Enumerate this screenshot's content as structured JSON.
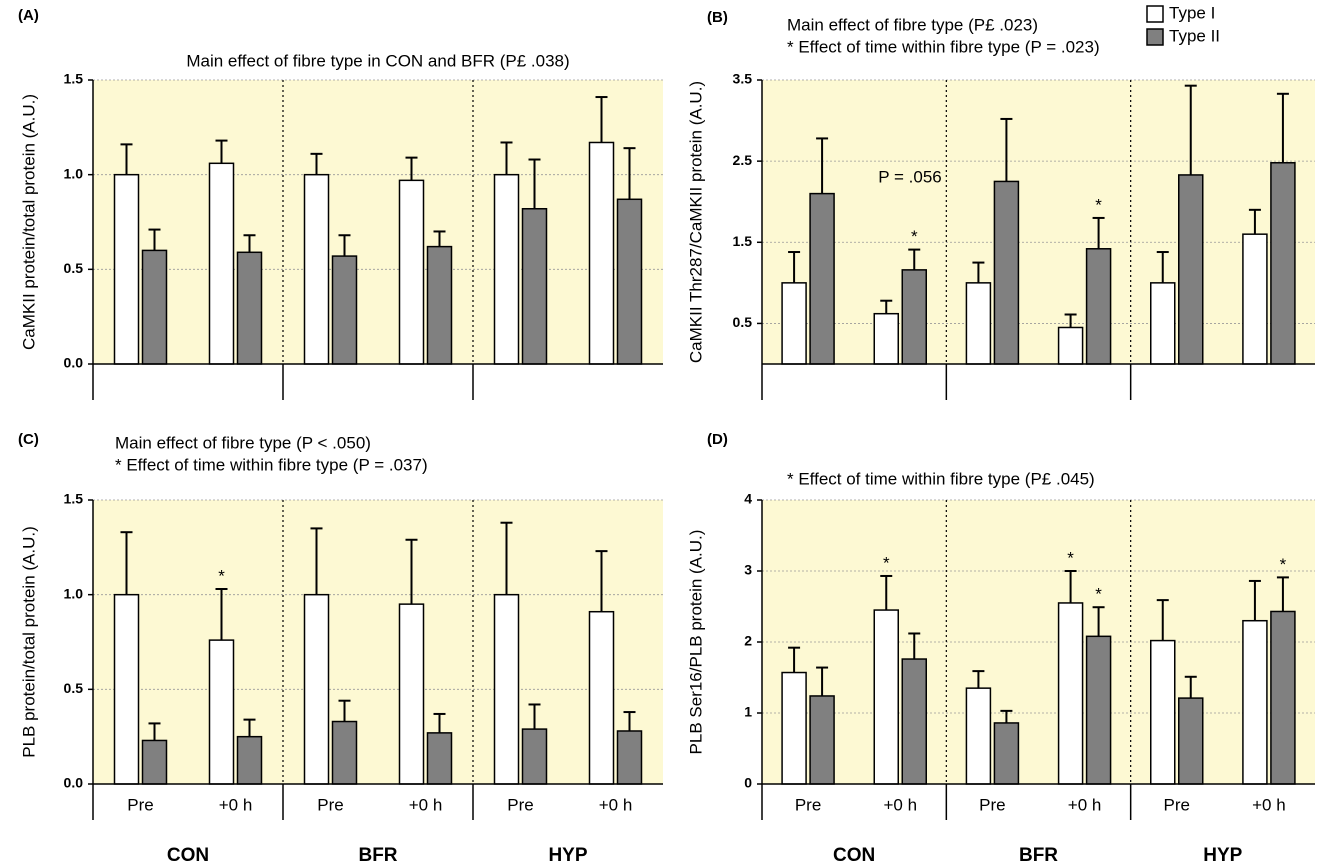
{
  "chart_data": [
    {
      "type": "bar",
      "panel": "(A)",
      "title": "Main effect of fibre type in CON and BFR (P£ .038)",
      "y_label": "CaMKII protein/total protein (A.U.)",
      "ylim": [
        0,
        1.5
      ],
      "yticks": [
        {
          "value": 0,
          "label": "0.0"
        },
        {
          "value": 0.5,
          "label": "0.5"
        },
        {
          "value": 1,
          "label": "1.0"
        },
        {
          "value": 1.5,
          "label": "1.5"
        }
      ],
      "grid": true,
      "plot_background": "#fdf9d3",
      "series": [
        {
          "name": "Type I",
          "color": "#ffffff",
          "values": [
            1.0,
            1.06,
            1.0,
            0.97,
            1.0,
            1.17
          ],
          "errors": [
            0.16,
            0.12,
            0.11,
            0.12,
            0.17,
            0.24
          ]
        },
        {
          "name": "Type II",
          "color": "#808080",
          "values": [
            0.6,
            0.59,
            0.57,
            0.62,
            0.82,
            0.87
          ],
          "errors": [
            0.11,
            0.09,
            0.11,
            0.08,
            0.26,
            0.27
          ]
        }
      ]
    },
    {
      "type": "bar",
      "panel": "(B)",
      "title": "Main effect of fibre type (P£ .023)",
      "subtitle": "* Effect of time within fibre type (P = .023)",
      "y_label": "CaMKII Thr287/CaMKII protein (A.U.)",
      "ylim": [
        0,
        3.5
      ],
      "yticks": [
        0.5,
        1.5,
        2.5,
        3.5
      ],
      "grid": true,
      "plot_background": "#fdf9d3",
      "legend": "upper right",
      "note": "P = .056",
      "series": [
        {
          "name": "Type I",
          "color": "#ffffff",
          "values": [
            1.0,
            0.62,
            1.0,
            0.45,
            1.0,
            1.6
          ],
          "errors": [
            0.38,
            0.16,
            0.25,
            0.16,
            0.38,
            0.3
          ]
        },
        {
          "name": "Type II",
          "color": "#808080",
          "values": [
            2.1,
            1.16,
            2.25,
            1.42,
            2.33,
            2.48
          ],
          "errors": [
            0.68,
            0.25,
            0.77,
            0.38,
            1.1,
            0.85
          ],
          "significance": [
            null,
            "*",
            null,
            "*",
            null,
            null
          ]
        }
      ]
    },
    {
      "type": "bar",
      "panel": "(C)",
      "title": "Main effect of fibre type (P < .050)",
      "subtitle": "* Effect of time within fibre type (P = .037)",
      "y_label": "PLB protein/total protein (A.U.)",
      "ylim": [
        0,
        1.5
      ],
      "yticks": [
        {
          "value": 0,
          "label": "0.0"
        },
        {
          "value": 0.5,
          "label": "0.5"
        },
        {
          "value": 1,
          "label": "1.0"
        },
        {
          "value": 1.5,
          "label": "1.5"
        }
      ],
      "grid": true,
      "plot_background": "#fdf9d3",
      "categories": [
        "Pre",
        "+0 h",
        "Pre",
        "+0 h",
        "Pre",
        "+0 h"
      ],
      "groups": [
        "CON",
        "BFR",
        "HYP"
      ],
      "series": [
        {
          "name": "Type I",
          "color": "#ffffff",
          "values": [
            1.0,
            0.76,
            1.0,
            0.95,
            1.0,
            0.91
          ],
          "errors": [
            0.33,
            0.27,
            0.35,
            0.34,
            0.38,
            0.32
          ],
          "significance": [
            null,
            "*",
            null,
            null,
            null,
            null
          ]
        },
        {
          "name": "Type II",
          "color": "#808080",
          "values": [
            0.23,
            0.25,
            0.33,
            0.27,
            0.29,
            0.28
          ],
          "errors": [
            0.09,
            0.09,
            0.11,
            0.1,
            0.13,
            0.1
          ]
        }
      ]
    },
    {
      "type": "bar",
      "panel": "(D)",
      "title": "* Effect of time within fibre type (P£ .045)",
      "y_label": "PLB Ser16/PLB protein (A.U.)",
      "ylim": [
        0,
        4
      ],
      "yticks": [
        0,
        1,
        2,
        3,
        4
      ],
      "grid": true,
      "plot_background": "#fdf9d3",
      "categories": [
        "Pre",
        "+0 h",
        "Pre",
        "+0 h",
        "Pre",
        "+0 h"
      ],
      "groups": [
        "CON",
        "BFR",
        "HYP"
      ],
      "series": [
        {
          "name": "Type I",
          "color": "#ffffff",
          "values": [
            1.57,
            2.45,
            1.35,
            2.55,
            2.02,
            2.3
          ],
          "errors": [
            0.35,
            0.48,
            0.24,
            0.45,
            0.57,
            0.56
          ],
          "significance": [
            null,
            "*",
            null,
            "*",
            null,
            null
          ]
        },
        {
          "name": "Type II",
          "color": "#808080",
          "values": [
            1.24,
            1.76,
            0.86,
            2.08,
            1.21,
            2.43
          ],
          "errors": [
            0.4,
            0.36,
            0.17,
            0.41,
            0.3,
            0.48
          ],
          "significance": [
            null,
            null,
            null,
            "*",
            null,
            "*"
          ]
        }
      ]
    }
  ]
}
